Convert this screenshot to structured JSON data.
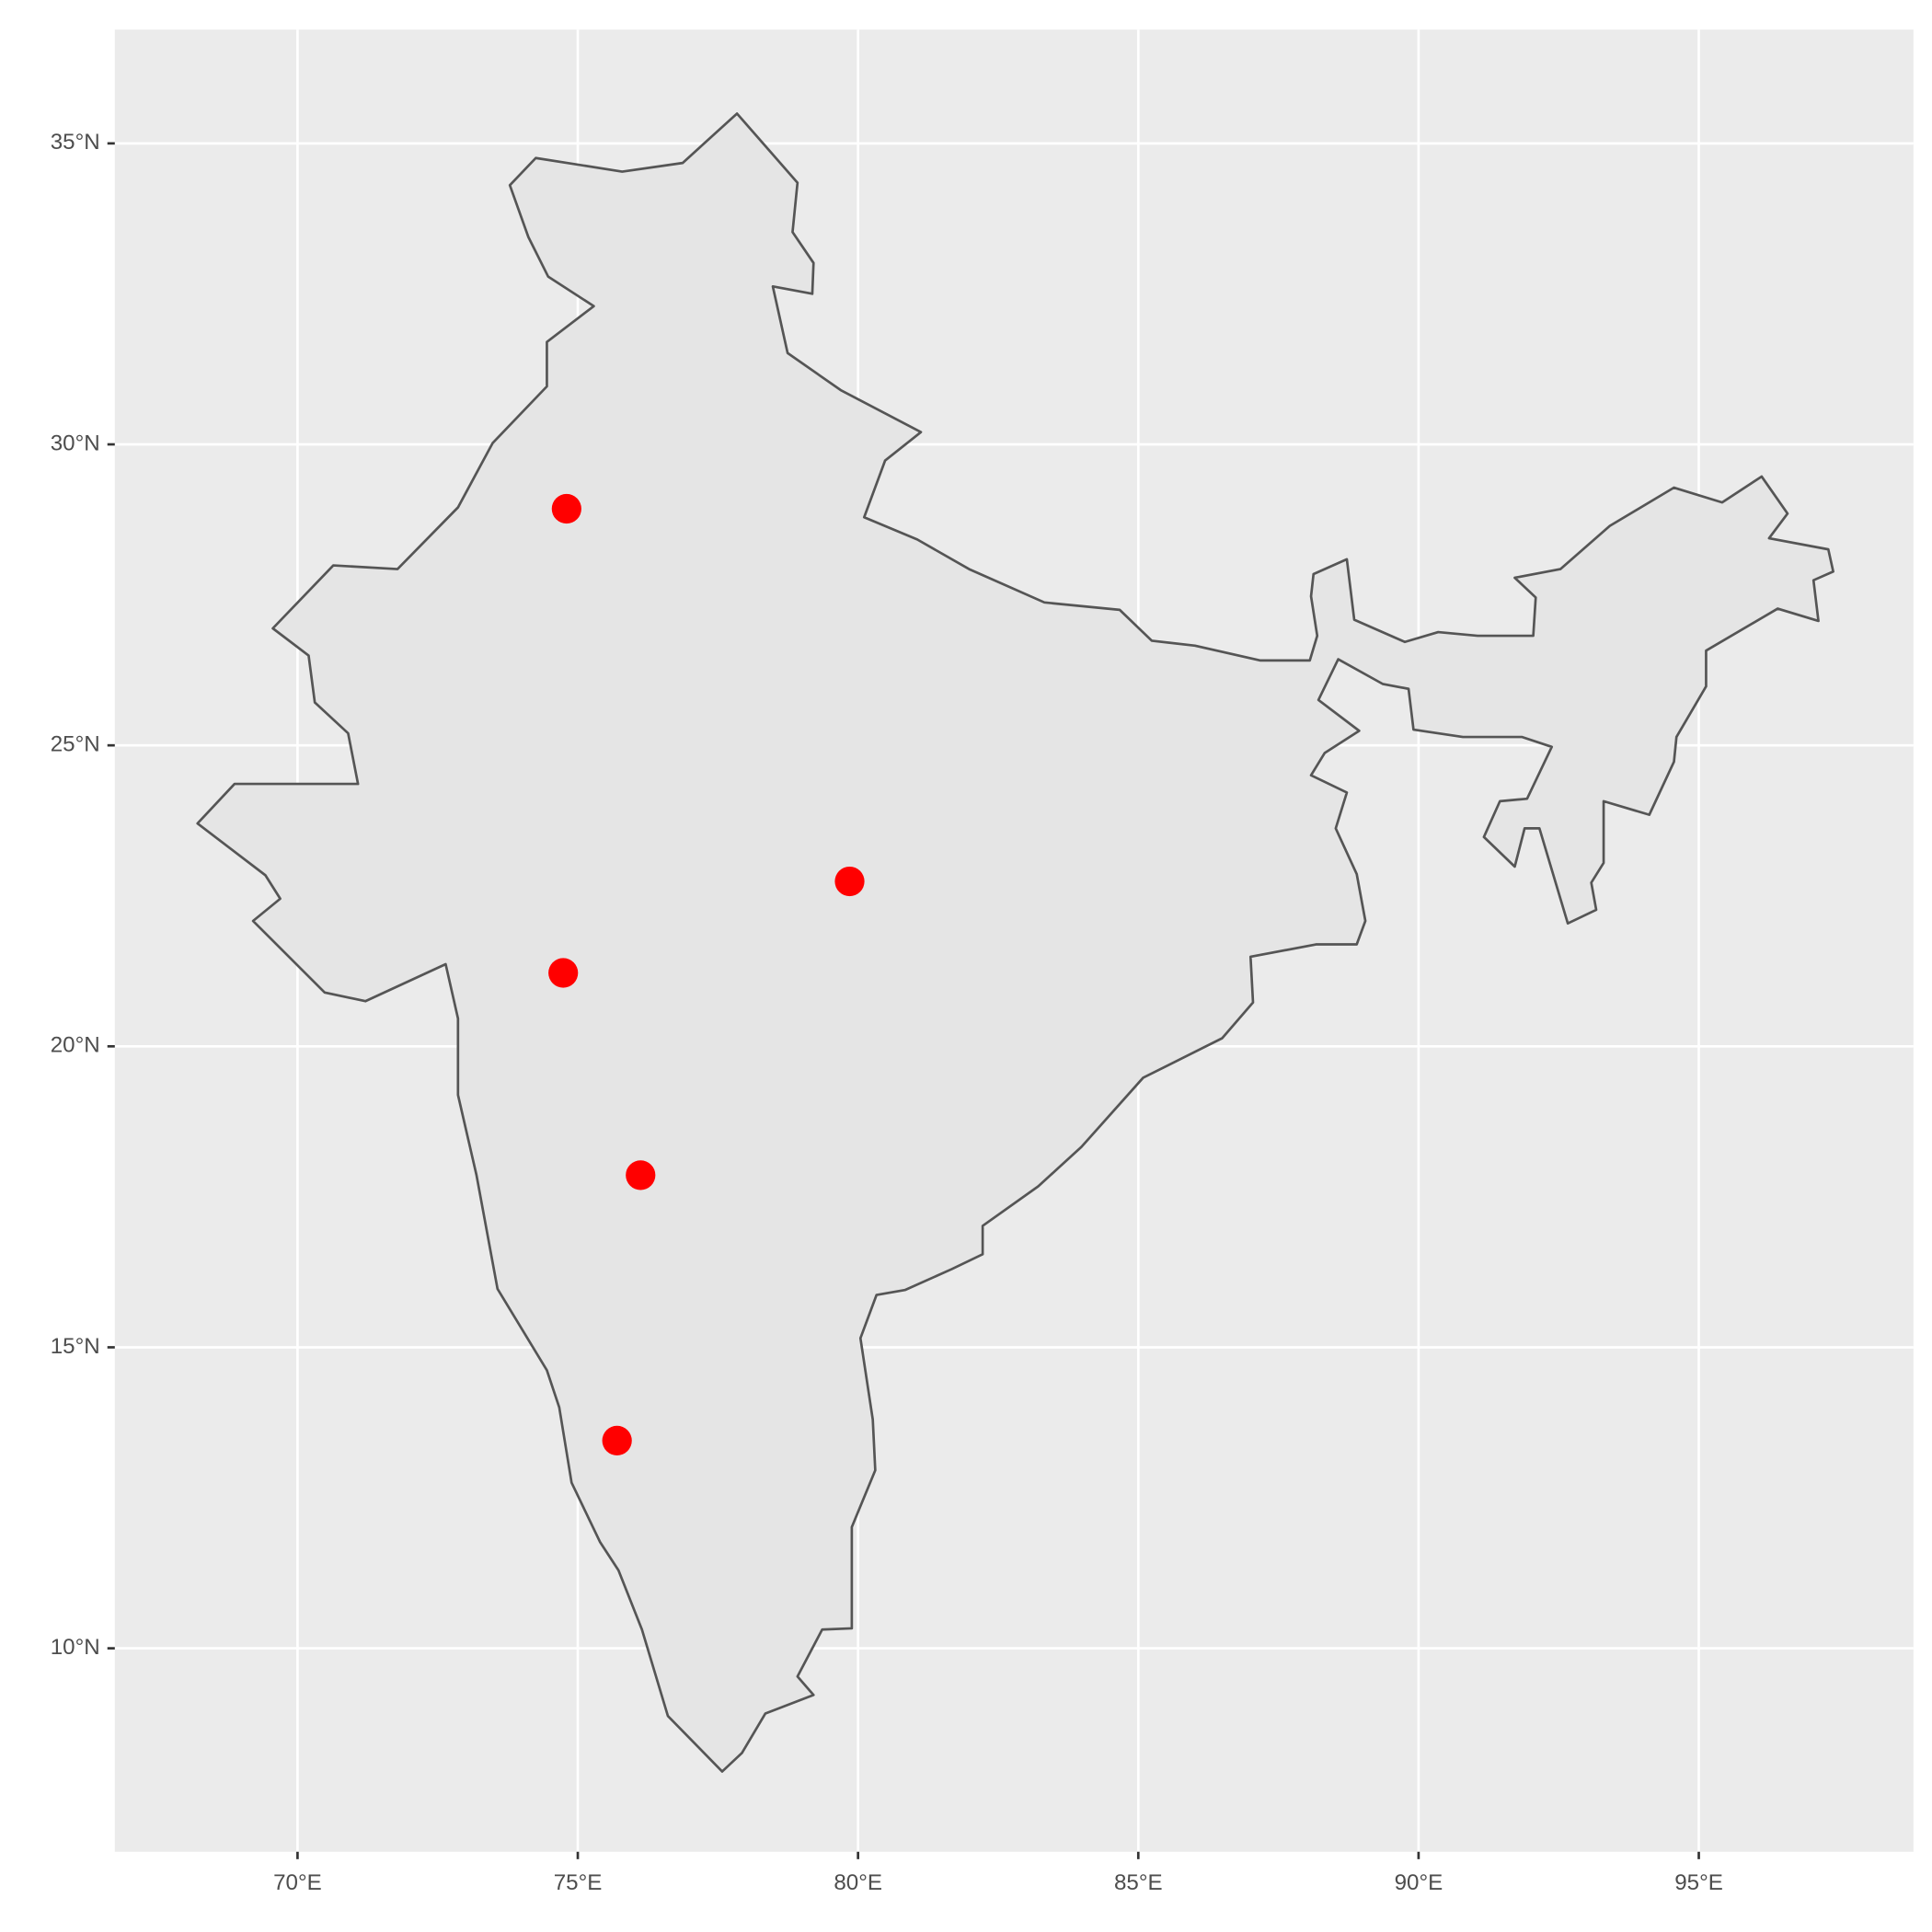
{
  "chart_data": {
    "type": "map",
    "x": [
      74.8,
      79.85,
      74.74,
      76.12,
      75.7
    ],
    "y": [
      28.93,
      22.74,
      21.22,
      17.86,
      13.45
    ],
    "color": "#ff0000",
    "xlim": [
      66.74,
      98.83
    ],
    "ylim": [
      6.62,
      36.89
    ],
    "xticks": [
      {
        "value": 70,
        "label": "70°E"
      },
      {
        "value": 75,
        "label": "75°E"
      },
      {
        "value": 80,
        "label": "80°E"
      },
      {
        "value": 85,
        "label": "85°E"
      },
      {
        "value": 90,
        "label": "90°E"
      },
      {
        "value": 95,
        "label": "95°E"
      }
    ],
    "yticks": [
      {
        "value": 10,
        "label": "10°N"
      },
      {
        "value": 15,
        "label": "15°N"
      },
      {
        "value": 20,
        "label": "20°N"
      },
      {
        "value": 25,
        "label": "25°N"
      },
      {
        "value": 30,
        "label": "30°N"
      },
      {
        "value": 35,
        "label": "35°N"
      }
    ],
    "grid": true
  }
}
